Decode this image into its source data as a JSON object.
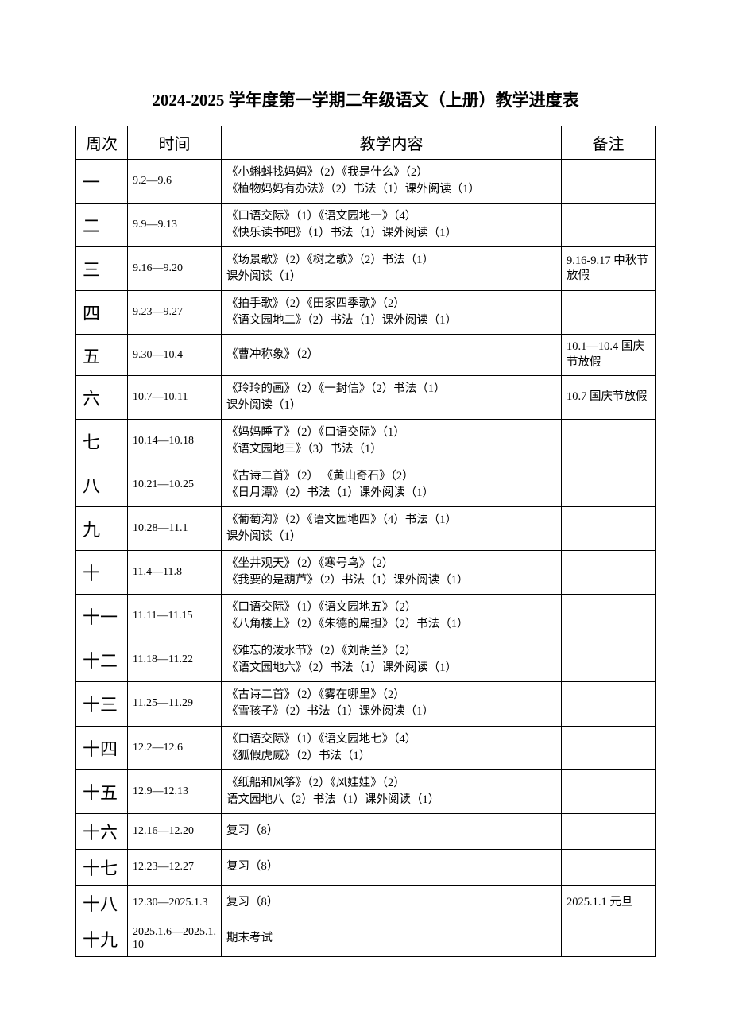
{
  "title": "2024-2025 学年度第一学期二年级语文（上册）教学进度表",
  "headers": {
    "week": "周次",
    "time": "时间",
    "content": "教学内容",
    "note": "备注"
  },
  "rows": [
    {
      "week": "一",
      "time": "9.2—9.6",
      "content_l1": "《小蝌蚪找妈妈》（2）《我是什么》（2）",
      "content_l2": "《植物妈妈有办法》（2）书法（1）课外阅读（1）",
      "note": ""
    },
    {
      "week": "二",
      "time": "9.9—9.13",
      "content_l1": "《口语交际》（1）《语文园地一》（4）",
      "content_l2": "《快乐读书吧》（1）书法（1）课外阅读（1）",
      "note": ""
    },
    {
      "week": "三",
      "time": "9.16—9.20",
      "content_l1": "《场景歌》（2）《树之歌》（2）书法（1）",
      "content_l2": "课外阅读（1）",
      "note": "9.16-9.17 中秋节放假"
    },
    {
      "week": "四",
      "time": "9.23—9.27",
      "content_l1": "《拍手歌》（2）《田家四季歌》（2）",
      "content_l2": "《语文园地二》（2）书法（1）课外阅读（1）",
      "note": ""
    },
    {
      "week": "五",
      "time": "9.30—10.4",
      "content_l1": "《曹冲称象》（2）",
      "content_l2": "",
      "note": "10.1—10.4 国庆节放假"
    },
    {
      "week": "六",
      "time": "10.7—10.11",
      "content_l1": "《玲玲的画》（2）《一封信》（2）书法（1）",
      "content_l2": "课外阅读（1）",
      "note": "10.7 国庆节放假"
    },
    {
      "week": "七",
      "time": "10.14—10.18",
      "content_l1": "《妈妈睡了》（2）《口语交际》（1）",
      "content_l2": "《语文园地三》（3）书法（1）",
      "note": ""
    },
    {
      "week": "八",
      "time": "10.21—10.25",
      "content_l1": "《古诗二首》（2） 《黄山奇石》（2）",
      "content_l2": "《日月潭》（2）书法（1）课外阅读（1）",
      "note": ""
    },
    {
      "week": "九",
      "time": "10.28—11.1",
      "content_l1": "《葡萄沟》（2）《语文园地四》（4）书法（1）",
      "content_l2": "课外阅读（1）",
      "note": ""
    },
    {
      "week": "十",
      "time": "11.4—11.8",
      "content_l1": "《坐井观天》（2）《寒号鸟》（2）",
      "content_l2": "《我要的是葫芦》（2）书法（1）课外阅读（1）",
      "note": ""
    },
    {
      "week": "十一",
      "time": "11.11—11.15",
      "content_l1": "《口语交际》（1）《语文园地五》（2）",
      "content_l2": "《八角楼上》（2）《朱德的扁担》（2）书法（1）",
      "note": ""
    },
    {
      "week": "十二",
      "time": "11.18—11.22",
      "content_l1": "《难忘的泼水节》（2）《刘胡兰》（2）",
      "content_l2": "《语文园地六》（2）书法（1）课外阅读（1）",
      "note": ""
    },
    {
      "week": "十三",
      "time": "11.25—11.29",
      "content_l1": "《古诗二首》（2）《雾在哪里》（2）",
      "content_l2": "《雪孩子》（2）书法（1）课外阅读（1）",
      "note": ""
    },
    {
      "week": "十四",
      "time": "12.2—12.6",
      "content_l1": "《口语交际》（1）《语文园地七》（4）",
      "content_l2": "《狐假虎威》（2）书法（1）",
      "note": ""
    },
    {
      "week": "十五",
      "time": "12.9—12.13",
      "content_l1": "《纸船和风筝》（2）《风娃娃》（2）",
      "content_l2": "语文园地八（2）书法（1）课外阅读（1）",
      "note": ""
    },
    {
      "week": "十六",
      "time": "12.16—12.20",
      "content_l1": "复习（8）",
      "content_l2": "",
      "note": ""
    },
    {
      "week": "十七",
      "time": "12.23—12.27",
      "content_l1": "复习（8）",
      "content_l2": "",
      "note": ""
    },
    {
      "week": "十八",
      "time": "12.30—2025.1.3",
      "content_l1": "复习（8）",
      "content_l2": "",
      "note": "2025.1.1 元旦"
    },
    {
      "week": "十九",
      "time": "2025.1.6—2025.1.10",
      "content_l1": "期末考试",
      "content_l2": "",
      "note": ""
    }
  ]
}
